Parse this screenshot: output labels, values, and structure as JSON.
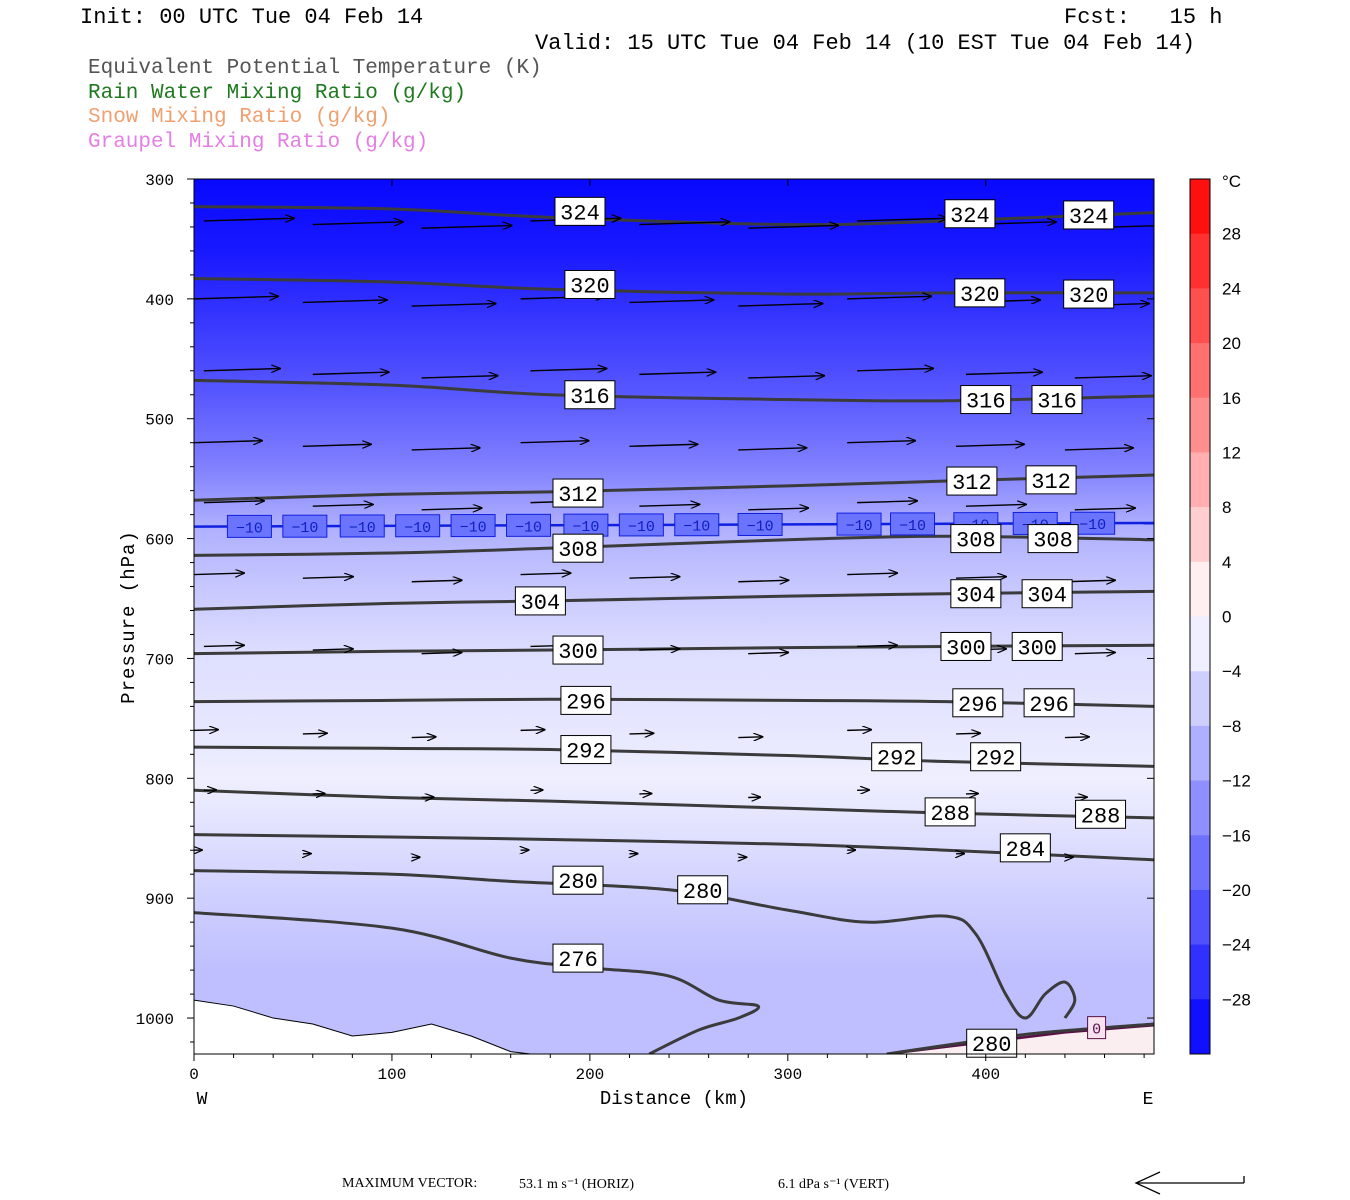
{
  "header": {
    "init": "Init: 00 UTC Tue 04 Feb 14",
    "fcst": "Fcst:   15 h",
    "valid": "Valid: 15 UTC Tue 04 Feb 14 (10 EST Tue 04 Feb 14)"
  },
  "field_legend": [
    {
      "label": "Equivalent Potential Temperature (K)",
      "color": "#555555"
    },
    {
      "label": "Rain Water Mixing Ratio (g/kg)",
      "color": "#1f7a1f"
    },
    {
      "label": "Snow Mixing Ratio (g/kg)",
      "color": "#f0a070"
    },
    {
      "label": "Graupel Mixing Ratio (g/kg)",
      "color": "#e57ee5"
    }
  ],
  "footer": {
    "max_label": "MAXIMUM VECTOR:",
    "horiz": "53.1 m s⁻¹ (HORIZ)",
    "vert": "6.1 dPa s⁻¹ (VERT)"
  },
  "chart_data": {
    "type": "contour cross-section",
    "xlabel": "Distance (km)",
    "ylabel": "Pressure (hPa)",
    "xlim": [
      0,
      485
    ],
    "ylim": [
      1030,
      300
    ],
    "x_ticks": [
      0,
      100,
      200,
      300,
      400
    ],
    "y_ticks": [
      300,
      400,
      500,
      600,
      700,
      800,
      900,
      1000
    ],
    "x_end_labels": {
      "left": "W",
      "right": "E"
    },
    "colorbar": {
      "unit": "°C",
      "tick_labels": [
        28,
        24,
        20,
        16,
        12,
        8,
        4,
        0,
        -4,
        -8,
        -12,
        -16,
        -20,
        -24,
        -28
      ],
      "range": [
        -32,
        32
      ]
    },
    "temperature_fill": [
      {
        "p": 300,
        "t": -31
      },
      {
        "p": 360,
        "t": -29
      },
      {
        "p": 420,
        "t": -25
      },
      {
        "p": 480,
        "t": -21
      },
      {
        "p": 540,
        "t": -16
      },
      {
        "p": 590,
        "t": -10
      },
      {
        "p": 640,
        "t": -7
      },
      {
        "p": 700,
        "t": -4
      },
      {
        "p": 760,
        "t": -3
      },
      {
        "p": 800,
        "t": -2
      },
      {
        "p": 850,
        "t": -4
      },
      {
        "p": 900,
        "t": -6
      },
      {
        "p": 960,
        "t": -8
      },
      {
        "p": 1030,
        "t": -8
      }
    ],
    "theta_e_contours": [
      {
        "level": 324,
        "points": [
          [
            0,
            323
          ],
          [
            100,
            325
          ],
          [
            180,
            332
          ],
          [
            300,
            338
          ],
          [
            380,
            335
          ],
          [
            485,
            328
          ]
        ]
      },
      {
        "level": 320,
        "points": [
          [
            0,
            383
          ],
          [
            100,
            386
          ],
          [
            180,
            392
          ],
          [
            300,
            396
          ],
          [
            380,
            395
          ],
          [
            485,
            395
          ]
        ]
      },
      {
        "level": 316,
        "points": [
          [
            0,
            468
          ],
          [
            100,
            472
          ],
          [
            180,
            480
          ],
          [
            300,
            484
          ],
          [
            380,
            485
          ],
          [
            485,
            481
          ]
        ]
      },
      {
        "level": 312,
        "points": [
          [
            0,
            568
          ],
          [
            100,
            563
          ],
          [
            180,
            561
          ],
          [
            300,
            556
          ],
          [
            380,
            552
          ],
          [
            485,
            547
          ]
        ]
      },
      {
        "level": 308,
        "points": [
          [
            0,
            614
          ],
          [
            100,
            612
          ],
          [
            180,
            608
          ],
          [
            300,
            601
          ],
          [
            380,
            598
          ],
          [
            485,
            601
          ]
        ]
      },
      {
        "level": 304,
        "points": [
          [
            0,
            659
          ],
          [
            100,
            654
          ],
          [
            180,
            652
          ],
          [
            300,
            648
          ],
          [
            380,
            646
          ],
          [
            485,
            644
          ]
        ]
      },
      {
        "level": 300,
        "points": [
          [
            0,
            696
          ],
          [
            100,
            694
          ],
          [
            180,
            693
          ],
          [
            300,
            691
          ],
          [
            380,
            690
          ],
          [
            485,
            689
          ]
        ]
      },
      {
        "level": 296,
        "points": [
          [
            0,
            736
          ],
          [
            100,
            735
          ],
          [
            180,
            734
          ],
          [
            300,
            735
          ],
          [
            380,
            736
          ],
          [
            485,
            740
          ]
        ]
      },
      {
        "level": 292,
        "points": [
          [
            0,
            774
          ],
          [
            100,
            775
          ],
          [
            180,
            776
          ],
          [
            300,
            781
          ],
          [
            380,
            786
          ],
          [
            485,
            790
          ]
        ]
      },
      {
        "level": 288,
        "points": [
          [
            0,
            810
          ],
          [
            100,
            816
          ],
          [
            180,
            819
          ],
          [
            300,
            825
          ],
          [
            380,
            829
          ],
          [
            485,
            833
          ]
        ]
      },
      {
        "level": 284,
        "points": [
          [
            0,
            847
          ],
          [
            100,
            849
          ],
          [
            180,
            851
          ],
          [
            300,
            855
          ],
          [
            380,
            860
          ],
          [
            485,
            868
          ]
        ]
      },
      {
        "level": 280,
        "points": [
          [
            0,
            877
          ],
          [
            100,
            880
          ],
          [
            160,
            886
          ],
          [
            240,
            893
          ],
          [
            300,
            910
          ],
          [
            340,
            920
          ],
          [
            380,
            915
          ],
          [
            395,
            930
          ],
          [
            410,
            980
          ],
          [
            420,
            1000
          ],
          [
            430,
            980
          ],
          [
            440,
            970
          ],
          [
            445,
            985
          ],
          [
            440,
            1000
          ]
        ]
      },
      {
        "level": 276,
        "points": [
          [
            0,
            912
          ],
          [
            100,
            925
          ],
          [
            160,
            950
          ],
          [
            200,
            958
          ],
          [
            240,
            965
          ],
          [
            265,
            985
          ],
          [
            285,
            990
          ],
          [
            275,
            1000
          ],
          [
            255,
            1010
          ],
          [
            230,
            1030
          ]
        ]
      },
      {
        "level": 280,
        "points": [
          [
            350,
            1030
          ],
          [
            400,
            1018
          ],
          [
            430,
            1012
          ],
          [
            485,
            1005
          ]
        ]
      }
    ],
    "contour_labels": [
      {
        "text": "324",
        "x": 195,
        "p": 327
      },
      {
        "text": "324",
        "x": 392,
        "p": 329
      },
      {
        "text": "324",
        "x": 452,
        "p": 330
      },
      {
        "text": "320",
        "x": 200,
        "p": 388
      },
      {
        "text": "320",
        "x": 397,
        "p": 395
      },
      {
        "text": "320",
        "x": 452,
        "p": 396
      },
      {
        "text": "316",
        "x": 200,
        "p": 480
      },
      {
        "text": "316",
        "x": 400,
        "p": 484
      },
      {
        "text": "316",
        "x": 436,
        "p": 484
      },
      {
        "text": "312",
        "x": 194,
        "p": 562
      },
      {
        "text": "312",
        "x": 393,
        "p": 552
      },
      {
        "text": "312",
        "x": 433,
        "p": 551
      },
      {
        "text": "308",
        "x": 194,
        "p": 608
      },
      {
        "text": "308",
        "x": 395,
        "p": 600
      },
      {
        "text": "308",
        "x": 434,
        "p": 600
      },
      {
        "text": "304",
        "x": 175,
        "p": 652
      },
      {
        "text": "304",
        "x": 395,
        "p": 646
      },
      {
        "text": "304",
        "x": 431,
        "p": 646
      },
      {
        "text": "300",
        "x": 194,
        "p": 693
      },
      {
        "text": "300",
        "x": 390,
        "p": 690
      },
      {
        "text": "300",
        "x": 426,
        "p": 690
      },
      {
        "text": "296",
        "x": 198,
        "p": 735
      },
      {
        "text": "296",
        "x": 396,
        "p": 737
      },
      {
        "text": "296",
        "x": 432,
        "p": 737
      },
      {
        "text": "292",
        "x": 198,
        "p": 776
      },
      {
        "text": "292",
        "x": 355,
        "p": 782
      },
      {
        "text": "292",
        "x": 405,
        "p": 782
      },
      {
        "text": "288",
        "x": 382,
        "p": 828
      },
      {
        "text": "288",
        "x": 458,
        "p": 830
      },
      {
        "text": "284",
        "x": 420,
        "p": 858
      },
      {
        "text": "280",
        "x": 194,
        "p": 885
      },
      {
        "text": "280",
        "x": 257,
        "p": 893
      },
      {
        "text": "276",
        "x": 194,
        "p": 950
      },
      {
        "text": "280",
        "x": 403,
        "p": 1021
      }
    ],
    "isotherm_minus10": {
      "p_left": 590,
      "p_right": 587,
      "labels": [
        {
          "text": "−10",
          "x": 28
        },
        {
          "text": "−10",
          "x": 56
        },
        {
          "text": "−10",
          "x": 85
        },
        {
          "text": "−10",
          "x": 113
        },
        {
          "text": "−10",
          "x": 141
        },
        {
          "text": "−10",
          "x": 169
        },
        {
          "text": "−10",
          "x": 198
        },
        {
          "text": "−10",
          "x": 226
        },
        {
          "text": "−10",
          "x": 254
        },
        {
          "text": "−10",
          "x": 286
        },
        {
          "text": "−10",
          "x": 336
        },
        {
          "text": "−10",
          "x": 363
        },
        {
          "text": "−10",
          "x": 395
        },
        {
          "text": "−10",
          "x": 425
        },
        {
          "text": "−10",
          "x": 454
        }
      ]
    },
    "isotherm_zero": {
      "label": "0",
      "x": 456,
      "p": 1008
    },
    "wind_vectors": [
      {
        "p": 335,
        "u": 45
      },
      {
        "p": 400,
        "u": 42
      },
      {
        "p": 460,
        "u": 38
      },
      {
        "p": 520,
        "u": 34
      },
      {
        "p": 570,
        "u": 30
      },
      {
        "p": 630,
        "u": 25
      },
      {
        "p": 690,
        "u": 20
      },
      {
        "p": 760,
        "u": 12
      },
      {
        "p": 810,
        "u": 6
      },
      {
        "p": 860,
        "u": 4
      }
    ]
  }
}
